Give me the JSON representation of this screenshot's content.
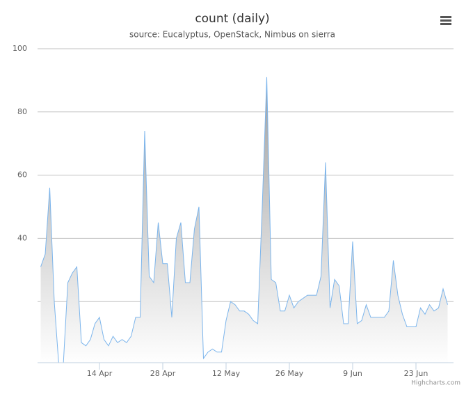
{
  "chart_data": {
    "type": "area",
    "title": "count (daily)",
    "subtitle": "source: Eucalyptus, OpenStack, Nimbus on sierra",
    "credits": "Highcharts.com",
    "categories": [
      null,
      null,
      null,
      null,
      null,
      null,
      null,
      null,
      null,
      null,
      null,
      null,
      null,
      "14 Apr",
      null,
      null,
      null,
      null,
      null,
      null,
      null,
      null,
      null,
      null,
      null,
      null,
      null,
      "28 Apr",
      null,
      null,
      null,
      null,
      null,
      null,
      null,
      null,
      null,
      null,
      null,
      null,
      null,
      "12 May",
      null,
      null,
      null,
      null,
      null,
      null,
      null,
      null,
      null,
      null,
      null,
      null,
      null,
      "26 May",
      null,
      null,
      null,
      null,
      null,
      null,
      null,
      null,
      null,
      null,
      null,
      null,
      null,
      "9 Jun",
      null,
      null,
      null,
      null,
      null,
      null,
      null,
      null,
      null,
      null,
      null,
      null,
      null,
      "23 Jun",
      null,
      null,
      null,
      null,
      null,
      null,
      null
    ],
    "series": [
      {
        "name": "count",
        "color": "#7cb5ec",
        "values": [
          31,
          35,
          56,
          20,
          0,
          0,
          26,
          29,
          31,
          7,
          6,
          8,
          13,
          15,
          8,
          6,
          9,
          7,
          8,
          7,
          9,
          15,
          15,
          74,
          28,
          26,
          45,
          32,
          32,
          15,
          40,
          45,
          26,
          26,
          43,
          50,
          2,
          4,
          5,
          4,
          4,
          14,
          20,
          19,
          17,
          17,
          16,
          14,
          13,
          50,
          91,
          27,
          26,
          17,
          17,
          22,
          18,
          20,
          21,
          22,
          22,
          22,
          28,
          64,
          18,
          27,
          25,
          13,
          13,
          39,
          13,
          14,
          19,
          15,
          15,
          15,
          15,
          17,
          33,
          22,
          16,
          12,
          12,
          12,
          18,
          16,
          19,
          17,
          18,
          24,
          19
        ]
      }
    ],
    "ylim": [
      0,
      100
    ],
    "yticks": [
      {
        "value": 20,
        "label": null
      },
      40,
      60,
      80,
      100
    ],
    "grid": true
  }
}
